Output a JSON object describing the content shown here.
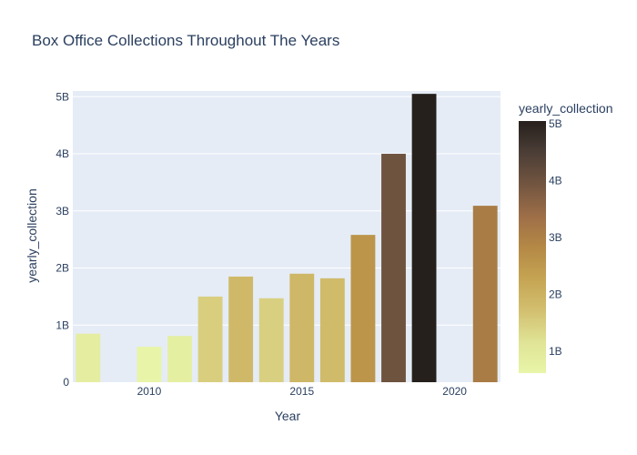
{
  "chart_data": {
    "type": "bar",
    "title": "Box Office Collections Throughout The Years",
    "xlabel": "Year",
    "ylabel": "yearly_collection",
    "x": [
      2008,
      2010,
      2011,
      2012,
      2013,
      2014,
      2015,
      2016,
      2017,
      2018,
      2019,
      2021
    ],
    "values": [
      850000000,
      620000000,
      810000000,
      1500000000,
      1850000000,
      1470000000,
      1900000000,
      1820000000,
      2580000000,
      4000000000,
      5050000000,
      3090000000
    ],
    "xlim": [
      2007.5,
      2021.5
    ],
    "ylim": [
      0,
      5100000000
    ],
    "x_ticks": [
      2010,
      2015,
      2020
    ],
    "x_tick_labels": [
      "2010",
      "2015",
      "2020"
    ],
    "y_ticks": [
      0,
      1000000000,
      2000000000,
      3000000000,
      4000000000,
      5000000000
    ],
    "y_tick_labels": [
      "0",
      "1B",
      "2B",
      "3B",
      "4B",
      "5B"
    ],
    "grid": true,
    "plot_background": "#e5ecf6",
    "grid_color": "#ffffff",
    "colorbar": {
      "title": "yearly_collection",
      "range": [
        620000000,
        5050000000
      ],
      "ticks": [
        1000000000,
        2000000000,
        3000000000,
        4000000000,
        5000000000
      ],
      "tick_labels": [
        "1B",
        "2B",
        "3B",
        "4B",
        "5B"
      ],
      "colorscale": [
        [
          0.0,
          "#e8f5a8"
        ],
        [
          0.12,
          "#e0e496"
        ],
        [
          0.25,
          "#d2bf6f"
        ],
        [
          0.38,
          "#c4a352"
        ],
        [
          0.5,
          "#b48845"
        ],
        [
          0.62,
          "#9e6f48"
        ],
        [
          0.75,
          "#725540"
        ],
        [
          0.88,
          "#4a3d36"
        ],
        [
          1.0,
          "#26201c"
        ]
      ]
    }
  }
}
